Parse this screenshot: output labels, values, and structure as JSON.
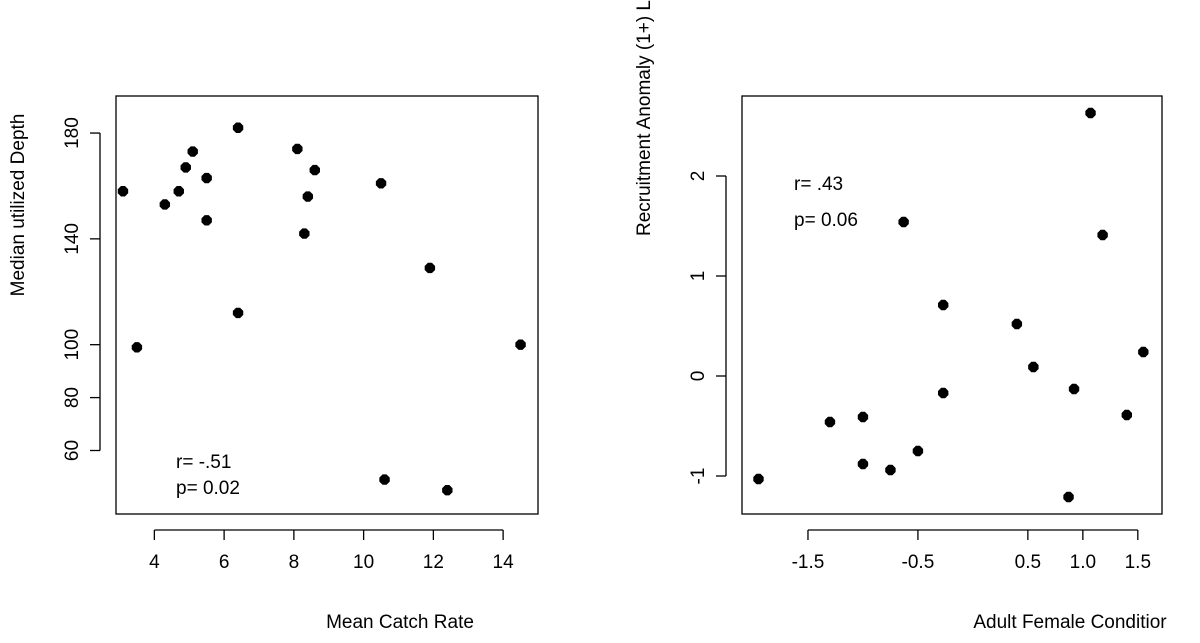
{
  "chart_data": [
    {
      "type": "scatter",
      "xlabel": "Mean Catch Rate",
      "ylabel": "Median utilized Depth",
      "xlim": [
        2.9,
        15.0
      ],
      "ylim": [
        36,
        194
      ],
      "xticks": [
        4,
        6,
        8,
        10,
        12,
        14
      ],
      "yticks": [
        60,
        80,
        100,
        140,
        180
      ],
      "annotations": [
        "r= -.51",
        "p= 0.02"
      ],
      "grid": false,
      "points": [
        {
          "x": 3.1,
          "y": 158
        },
        {
          "x": 3.5,
          "y": 99
        },
        {
          "x": 4.3,
          "y": 153
        },
        {
          "x": 4.7,
          "y": 158
        },
        {
          "x": 4.9,
          "y": 167
        },
        {
          "x": 5.1,
          "y": 173
        },
        {
          "x": 5.5,
          "y": 147
        },
        {
          "x": 5.5,
          "y": 163
        },
        {
          "x": 6.4,
          "y": 182
        },
        {
          "x": 6.4,
          "y": 112
        },
        {
          "x": 8.1,
          "y": 174
        },
        {
          "x": 8.3,
          "y": 142
        },
        {
          "x": 8.4,
          "y": 156
        },
        {
          "x": 8.6,
          "y": 166
        },
        {
          "x": 10.5,
          "y": 161
        },
        {
          "x": 10.6,
          "y": 49
        },
        {
          "x": 11.9,
          "y": 129
        },
        {
          "x": 12.4,
          "y": 45
        },
        {
          "x": 14.5,
          "y": 100
        }
      ]
    },
    {
      "type": "scatter",
      "xlabel": "Adult Female Conditior",
      "ylabel": "Recruitment Anomaly (1+) L",
      "xlim": [
        -2.1,
        1.72
      ],
      "ylim": [
        -1.38,
        2.8
      ],
      "xticks": [
        -1.5,
        -0.5,
        0.5,
        1.0,
        1.5
      ],
      "xtick_labels": [
        "-1.5",
        "-0.5",
        "0.5",
        "1.0",
        "1.5"
      ],
      "yticks": [
        -1,
        0,
        1,
        2
      ],
      "ytick_labels": [
        "-1",
        "0",
        "1",
        "2"
      ],
      "annotations": [
        "r= .43",
        "p= 0.06"
      ],
      "grid": false,
      "points": [
        {
          "x": -1.95,
          "y": -1.03
        },
        {
          "x": -1.3,
          "y": -0.46
        },
        {
          "x": -1.0,
          "y": -0.41
        },
        {
          "x": -1.0,
          "y": -0.88
        },
        {
          "x": -0.75,
          "y": -0.94
        },
        {
          "x": -0.63,
          "y": 1.54
        },
        {
          "x": -0.5,
          "y": -0.75
        },
        {
          "x": -0.27,
          "y": 0.71
        },
        {
          "x": -0.27,
          "y": -0.17
        },
        {
          "x": 0.4,
          "y": 0.52
        },
        {
          "x": 0.55,
          "y": 0.09
        },
        {
          "x": 0.87,
          "y": -1.21
        },
        {
          "x": 0.92,
          "y": -0.13
        },
        {
          "x": 1.07,
          "y": 2.63
        },
        {
          "x": 1.18,
          "y": 1.41
        },
        {
          "x": 1.4,
          "y": -0.39
        },
        {
          "x": 1.55,
          "y": 0.24
        }
      ]
    }
  ]
}
